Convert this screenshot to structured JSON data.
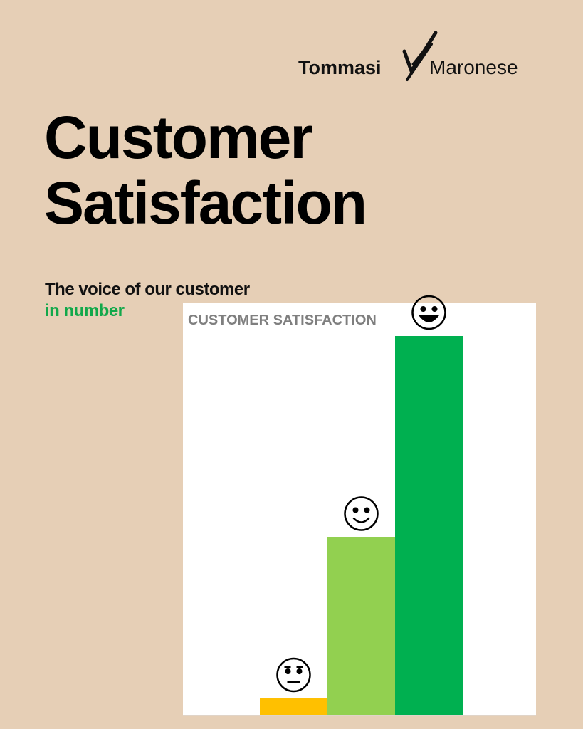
{
  "brand": [
    "Tommasi",
    "Maronese"
  ],
  "title": [
    "Customer",
    "Satisfaction"
  ],
  "subtitle": [
    "The voice of our customer",
    "in number"
  ],
  "chart_data": {
    "type": "bar",
    "title": "CUSTOMER SATISFACTION",
    "categories": [
      null,
      null,
      null,
      null,
      null
    ],
    "values": [
      null,
      4.5,
      47,
      100,
      null
    ],
    "colors": [
      null,
      "#ffc000",
      "#92d050",
      "#00b050",
      null
    ]
  }
}
